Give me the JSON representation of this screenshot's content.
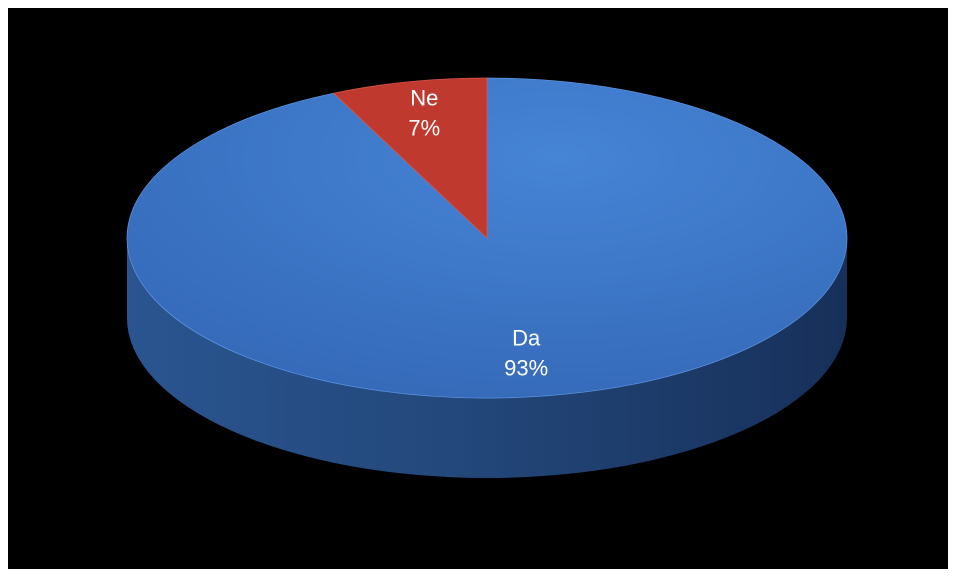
{
  "chart_data": {
    "type": "pie",
    "title": "",
    "slices": [
      {
        "label": "Da",
        "value": 93,
        "value_label": "93%",
        "color": "#3a72c4"
      },
      {
        "label": "Ne",
        "value": 7,
        "value_label": "7%",
        "color": "#c0392f"
      }
    ],
    "style": "3d",
    "background": "#000000",
    "legend": "none"
  }
}
